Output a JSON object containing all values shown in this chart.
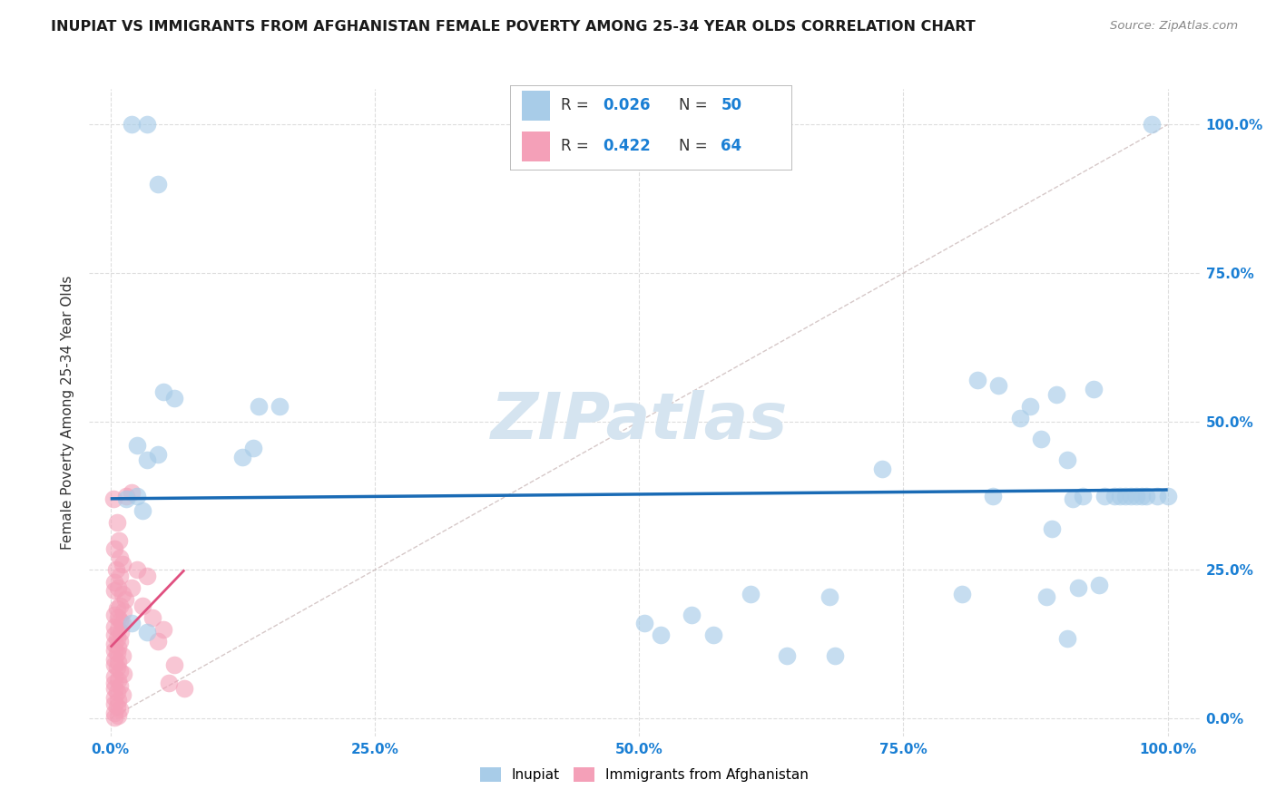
{
  "title": "INUPIAT VS IMMIGRANTS FROM AFGHANISTAN FEMALE POVERTY AMONG 25-34 YEAR OLDS CORRELATION CHART",
  "source": "Source: ZipAtlas.com",
  "ylabel": "Female Poverty Among 25-34 Year Olds",
  "x_tick_labels": [
    "0.0%",
    "25.0%",
    "50.0%",
    "75.0%",
    "100.0%"
  ],
  "y_tick_labels": [
    "0.0%",
    "25.0%",
    "50.0%",
    "75.0%",
    "100.0%"
  ],
  "x_tick_positions": [
    0,
    25,
    50,
    75,
    100
  ],
  "y_tick_positions": [
    0,
    25,
    50,
    75,
    100
  ],
  "xlim": [
    -2,
    103
  ],
  "ylim": [
    -3,
    106
  ],
  "r_color": "#1a7fd4",
  "blue_color": "#a8cce8",
  "pink_color": "#f4a0b8",
  "trend_blue_color": "#1a6bb5",
  "trend_pink_color": "#e05080",
  "diag_color": "#ccbbbb",
  "watermark": "ZIPatlas",
  "watermark_color": "#d5e4f0",
  "background_color": "#ffffff",
  "grid_color": "#dddddd",
  "inupiat_points": [
    [
      1.5,
      37.0
    ],
    [
      2.5,
      37.5
    ],
    [
      2.0,
      100.0
    ],
    [
      3.5,
      100.0
    ],
    [
      4.5,
      90.0
    ],
    [
      2.5,
      46.0
    ],
    [
      3.5,
      43.5
    ],
    [
      4.5,
      44.5
    ],
    [
      5.0,
      55.0
    ],
    [
      6.0,
      54.0
    ],
    [
      14.0,
      52.5
    ],
    [
      16.0,
      52.5
    ],
    [
      12.5,
      44.0
    ],
    [
      13.5,
      45.5
    ],
    [
      3.0,
      35.0
    ],
    [
      3.5,
      14.5
    ],
    [
      50.5,
      16.0
    ],
    [
      55.0,
      17.5
    ],
    [
      52.0,
      14.0
    ],
    [
      57.0,
      14.0
    ],
    [
      64.0,
      10.5
    ],
    [
      68.5,
      10.5
    ],
    [
      73.0,
      42.0
    ],
    [
      82.0,
      57.0
    ],
    [
      84.0,
      56.0
    ],
    [
      87.0,
      52.5
    ],
    [
      89.5,
      54.5
    ],
    [
      93.0,
      55.5
    ],
    [
      86.0,
      50.5
    ],
    [
      88.0,
      47.0
    ],
    [
      90.5,
      43.5
    ],
    [
      83.5,
      37.5
    ],
    [
      89.0,
      32.0
    ],
    [
      91.5,
      22.0
    ],
    [
      93.5,
      22.5
    ],
    [
      90.5,
      13.5
    ],
    [
      88.5,
      20.5
    ],
    [
      95.0,
      37.5
    ],
    [
      96.0,
      37.5
    ],
    [
      97.5,
      37.5
    ],
    [
      98.5,
      100.0
    ],
    [
      2.0,
      16.0
    ],
    [
      68.0,
      20.5
    ],
    [
      80.5,
      21.0
    ],
    [
      60.5,
      21.0
    ],
    [
      92.0,
      37.5
    ],
    [
      95.5,
      37.5
    ],
    [
      96.5,
      37.5
    ],
    [
      98.0,
      37.5
    ],
    [
      99.0,
      37.5
    ],
    [
      100.0,
      37.5
    ],
    [
      91.0,
      37.0
    ],
    [
      94.0,
      37.5
    ],
    [
      97.0,
      37.5
    ]
  ],
  "afghanistan_points": [
    [
      0.3,
      37.0
    ],
    [
      0.6,
      33.0
    ],
    [
      0.8,
      30.0
    ],
    [
      0.4,
      28.5
    ],
    [
      0.9,
      27.0
    ],
    [
      1.1,
      26.0
    ],
    [
      0.5,
      25.0
    ],
    [
      0.9,
      24.0
    ],
    [
      0.4,
      23.0
    ],
    [
      0.7,
      22.0
    ],
    [
      1.1,
      21.0
    ],
    [
      0.4,
      21.5
    ],
    [
      1.4,
      20.0
    ],
    [
      0.9,
      19.0
    ],
    [
      0.6,
      18.5
    ],
    [
      1.2,
      18.0
    ],
    [
      0.4,
      17.5
    ],
    [
      0.7,
      17.0
    ],
    [
      0.9,
      16.5
    ],
    [
      1.1,
      16.0
    ],
    [
      0.4,
      15.5
    ],
    [
      0.7,
      15.0
    ],
    [
      1.0,
      14.5
    ],
    [
      0.4,
      14.0
    ],
    [
      0.6,
      13.5
    ],
    [
      0.9,
      13.0
    ],
    [
      0.4,
      12.5
    ],
    [
      0.7,
      12.0
    ],
    [
      0.4,
      11.5
    ],
    [
      0.6,
      11.0
    ],
    [
      1.1,
      10.5
    ],
    [
      0.4,
      10.0
    ],
    [
      0.7,
      9.5
    ],
    [
      0.4,
      9.0
    ],
    [
      0.6,
      8.5
    ],
    [
      0.9,
      8.0
    ],
    [
      1.2,
      7.5
    ],
    [
      0.4,
      7.0
    ],
    [
      0.7,
      6.5
    ],
    [
      0.4,
      6.0
    ],
    [
      0.9,
      5.5
    ],
    [
      0.4,
      5.0
    ],
    [
      0.6,
      4.5
    ],
    [
      1.1,
      4.0
    ],
    [
      0.4,
      3.5
    ],
    [
      0.7,
      3.0
    ],
    [
      0.4,
      2.5
    ],
    [
      0.6,
      2.0
    ],
    [
      0.9,
      1.5
    ],
    [
      0.4,
      1.0
    ],
    [
      0.7,
      0.5
    ],
    [
      0.4,
      0.2
    ],
    [
      2.0,
      22.0
    ],
    [
      3.0,
      19.0
    ],
    [
      4.0,
      17.0
    ],
    [
      5.0,
      15.0
    ],
    [
      4.5,
      13.0
    ],
    [
      6.0,
      9.0
    ],
    [
      5.5,
      6.0
    ],
    [
      7.0,
      5.0
    ],
    [
      2.5,
      25.0
    ],
    [
      3.5,
      24.0
    ],
    [
      1.5,
      37.5
    ],
    [
      2.0,
      38.0
    ]
  ]
}
